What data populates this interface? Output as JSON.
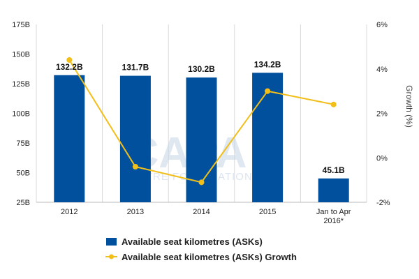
{
  "chart_data": {
    "type": "bar",
    "categories": [
      "2012",
      "2013",
      "2014",
      "2015",
      "Jan to Apr|2016*"
    ],
    "series": [
      {
        "name": "Available seat kilometres (ASKs)",
        "type": "bar",
        "axis": "left",
        "color": "#00509e",
        "values": [
          132.2,
          131.7,
          130.2,
          134.2,
          45.1
        ],
        "labels": [
          "132.2B",
          "131.7B",
          "130.2B",
          "134.2B",
          "45.1B"
        ]
      },
      {
        "name": "Available seat kilometres (ASKs) Growth",
        "type": "line",
        "axis": "right",
        "color": "#f2bf1a",
        "values": [
          4.4,
          -0.4,
          -1.1,
          3.0,
          2.4
        ]
      }
    ],
    "yleft": {
      "min": 25,
      "max": 175,
      "ticks": [
        25,
        50,
        75,
        100,
        125,
        150,
        175
      ],
      "tick_labels": [
        "25B",
        "50B",
        "75B",
        "100B",
        "125B",
        "150B",
        "175B"
      ]
    },
    "yright": {
      "label": "Growth (%)",
      "min": -2,
      "max": 6,
      "ticks": [
        -2,
        0,
        2,
        4,
        6
      ],
      "tick_labels": [
        "-2%",
        "0%",
        "2%",
        "4%",
        "6%"
      ]
    },
    "grid": "vertical",
    "legend_position": "bottom",
    "watermark": "CAPA CENTRE FOR AVIATION"
  }
}
